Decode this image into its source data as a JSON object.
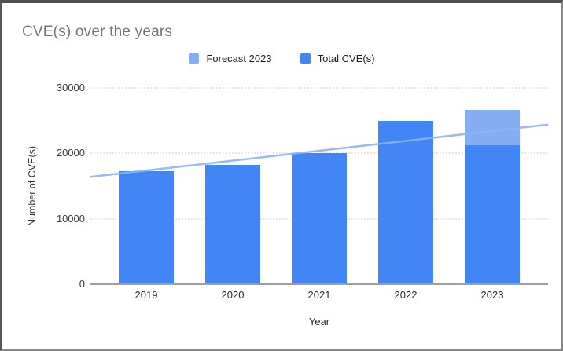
{
  "title": "CVE(s) over the years",
  "legend": {
    "items": [
      {
        "label": "Forecast 2023",
        "color": "#85aef2"
      },
      {
        "label": "Total CVE(s)",
        "color": "#4285f4"
      }
    ]
  },
  "axes": {
    "x_title": "Year",
    "y_title": "Number of CVE(s)"
  },
  "colors": {
    "total_bar": "#4285f4",
    "forecast_bar": "#85aef2",
    "trendline": "#8cb2f4",
    "gridline": "#e6e6e6",
    "axis_line": "#9e9e9e",
    "title_text": "#757575"
  },
  "chart_data": {
    "type": "bar",
    "title": "CVE(s) over the years",
    "xlabel": "Year",
    "ylabel": "Number of CVE(s)",
    "categories": [
      "2019",
      "2020",
      "2021",
      "2022",
      "2023"
    ],
    "series": [
      {
        "name": "Total CVE(s)",
        "color": "#4285f4",
        "values": [
          17300,
          18300,
          20100,
          25000,
          21200
        ]
      },
      {
        "name": "Forecast 2023",
        "color": "#85aef2",
        "values": [
          0,
          0,
          0,
          0,
          5400
        ],
        "note": "stacked on top of Total CVE(s); 2023 stack top ≈ 26600"
      }
    ],
    "trendline": {
      "x_start": "2019 (axis left edge)",
      "y_start": 16400,
      "x_end": "2023 (axis right edge)",
      "y_end": 24400,
      "color": "#8cb2f4"
    },
    "yticks": [
      0,
      10000,
      20000,
      30000
    ],
    "ylim": [
      0,
      30000
    ],
    "grid": true,
    "legend_position": "top"
  }
}
